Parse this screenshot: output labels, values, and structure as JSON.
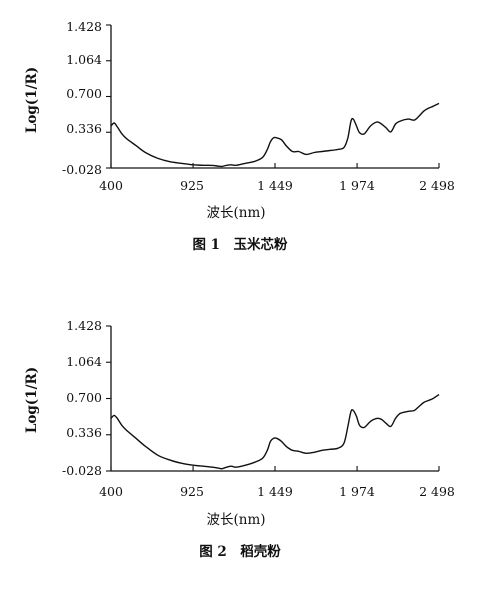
{
  "chart_data": [
    {
      "type": "line",
      "caption": "图 1　玉米芯粉",
      "ylabel": "Log(1/R)",
      "xlabel": "波长(nm)",
      "xlim": [
        400,
        2498
      ],
      "ylim": [
        -0.028,
        1.428
      ],
      "xticks": [
        400,
        925,
        1449,
        1974,
        2498
      ],
      "xtick_labels": [
        "400",
        "925",
        "1 449",
        "1 974",
        "2 498"
      ],
      "yticks": [
        -0.028,
        0.336,
        0.7,
        1.064,
        1.428
      ],
      "ytick_labels": [
        "-0.028",
        "0.336",
        "0.700",
        "1.064",
        "1.428"
      ],
      "series": [
        {
          "x": [
            400,
            420,
            440,
            470,
            500,
            560,
            620,
            700,
            780,
            850,
            925,
            990,
            1050,
            1090,
            1110,
            1140,
            1170,
            1200,
            1260,
            1320,
            1370,
            1400,
            1420,
            1440,
            1460,
            1490,
            1520,
            1560,
            1600,
            1650,
            1700,
            1750,
            1800,
            1850,
            1890,
            1915,
            1935,
            1950,
            1970,
            1990,
            2020,
            2060,
            2100,
            2130,
            2160,
            2190,
            2220,
            2250,
            2300,
            2340,
            2370,
            2400,
            2430,
            2460,
            2498
          ],
          "values": [
            0.4,
            0.43,
            0.39,
            0.32,
            0.27,
            0.2,
            0.13,
            0.07,
            0.035,
            0.02,
            0.005,
            0.0,
            -0.002,
            -0.01,
            -0.012,
            0.0,
            0.005,
            0.0,
            0.02,
            0.04,
            0.08,
            0.16,
            0.24,
            0.28,
            0.28,
            0.26,
            0.2,
            0.14,
            0.14,
            0.11,
            0.13,
            0.14,
            0.15,
            0.16,
            0.18,
            0.28,
            0.45,
            0.47,
            0.4,
            0.33,
            0.32,
            0.4,
            0.44,
            0.42,
            0.38,
            0.34,
            0.42,
            0.45,
            0.47,
            0.46,
            0.5,
            0.55,
            0.58,
            0.6,
            0.63
          ]
        }
      ]
    },
    {
      "type": "line",
      "caption": "图 2　稻壳粉",
      "ylabel": "Log(1/R)",
      "xlabel": "波长(nm)",
      "xlim": [
        400,
        2498
      ],
      "ylim": [
        -0.028,
        1.428
      ],
      "xticks": [
        400,
        925,
        1449,
        1974,
        2498
      ],
      "xtick_labels": [
        "400",
        "925",
        "1 449",
        "1 974",
        "2 498"
      ],
      "yticks": [
        -0.028,
        0.336,
        0.7,
        1.064,
        1.428
      ],
      "ytick_labels": [
        "-0.028",
        "0.336",
        "0.700",
        "1.064",
        "1.428"
      ],
      "series": [
        {
          "x": [
            400,
            420,
            440,
            470,
            500,
            560,
            620,
            700,
            780,
            850,
            925,
            990,
            1050,
            1090,
            1110,
            1140,
            1170,
            1200,
            1260,
            1320,
            1370,
            1400,
            1420,
            1440,
            1460,
            1490,
            1520,
            1560,
            1600,
            1650,
            1700,
            1750,
            1800,
            1850,
            1890,
            1915,
            1935,
            1950,
            1970,
            1990,
            2020,
            2060,
            2100,
            2130,
            2160,
            2190,
            2220,
            2250,
            2300,
            2340,
            2370,
            2400,
            2430,
            2460,
            2498
          ],
          "values": [
            0.5,
            0.53,
            0.5,
            0.43,
            0.38,
            0.3,
            0.22,
            0.13,
            0.08,
            0.05,
            0.03,
            0.02,
            0.01,
            0.0,
            -0.005,
            0.01,
            0.02,
            0.01,
            0.03,
            0.06,
            0.1,
            0.18,
            0.27,
            0.3,
            0.3,
            0.27,
            0.22,
            0.18,
            0.17,
            0.15,
            0.16,
            0.18,
            0.19,
            0.2,
            0.25,
            0.42,
            0.57,
            0.58,
            0.52,
            0.43,
            0.41,
            0.47,
            0.5,
            0.49,
            0.45,
            0.42,
            0.5,
            0.55,
            0.57,
            0.58,
            0.62,
            0.66,
            0.68,
            0.7,
            0.74
          ]
        }
      ]
    }
  ]
}
